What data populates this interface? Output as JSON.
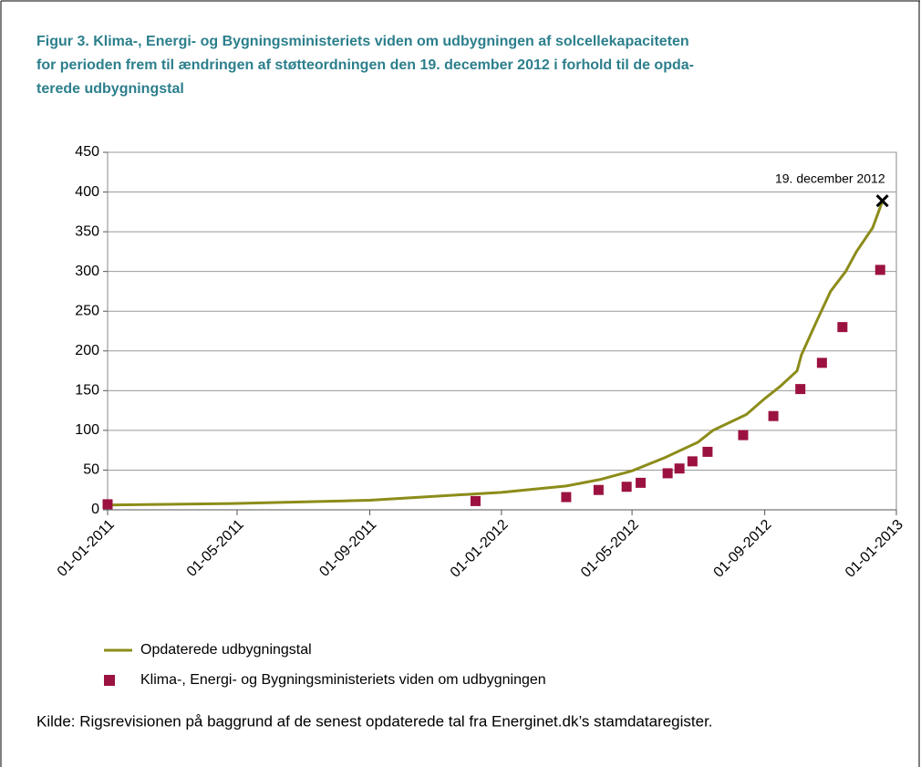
{
  "chart_data": {
    "type": "line",
    "title": [
      "Figur 3. Klima-, Energi- og Bygningsministeriets viden om udbygningen af solcellekapaciteten",
      "for perioden frem til ændringen af støtteordningen den 19. december 2012 i forhold til de opda-",
      "terede udbygningstal"
    ],
    "source": "Kilde:  Rigsrevisionen på baggrund af de senest opdaterede tal fra Energinet.dk’s stamdataregister.",
    "xlim": [
      "2011-01-01",
      "2013-01-01"
    ],
    "xticks": [
      {
        "value": "2011-01-01",
        "label": "01-01-2011"
      },
      {
        "value": "2011-05-01",
        "label": "01-05-2011"
      },
      {
        "value": "2011-09-01",
        "label": "01-09-2011"
      },
      {
        "value": "2012-01-01",
        "label": "01-01-2012"
      },
      {
        "value": "2012-05-01",
        "label": "01-05-2012"
      },
      {
        "value": "2012-09-01",
        "label": "01-09-2012"
      },
      {
        "value": "2013-01-01",
        "label": "01-01-2013"
      }
    ],
    "ylim": [
      0,
      450
    ],
    "yticks": [
      0,
      50,
      100,
      150,
      200,
      250,
      300,
      350,
      400,
      450
    ],
    "grid": true,
    "series": [
      {
        "name": "Opdaterede udbygningstal",
        "color": "#8c8c1a",
        "kind": "line",
        "x": [
          "2011-01-01",
          "2011-05-01",
          "2011-09-01",
          "2012-01-01",
          "2012-03-01",
          "2012-04-01",
          "2012-05-01",
          "2012-06-01",
          "2012-07-01",
          "2012-07-15",
          "2012-08-15",
          "2012-09-01",
          "2012-09-15",
          "2012-10-01",
          "2012-10-05",
          "2012-10-20",
          "2012-11-01",
          "2012-11-15",
          "2012-11-25",
          "2012-12-10",
          "2012-12-19"
        ],
        "values": [
          6,
          8,
          12,
          22,
          30,
          38,
          49,
          66,
          85,
          100,
          120,
          140,
          155,
          175,
          195,
          240,
          275,
          300,
          325,
          355,
          388
        ]
      },
      {
        "name": "Klima-, Energi- og Bygningsministeriets viden om udbygningen",
        "color": "#9b1240",
        "kind": "scatter",
        "x": [
          "2011-01-01",
          "2011-12-08",
          "2012-03-01",
          "2012-03-31",
          "2012-04-26",
          "2012-05-09",
          "2012-06-03",
          "2012-06-14",
          "2012-06-26",
          "2012-07-10",
          "2012-08-12",
          "2012-09-09",
          "2012-10-04",
          "2012-10-24",
          "2012-11-12",
          "2012-12-17"
        ],
        "values": [
          7,
          11,
          16,
          25,
          29,
          34,
          46,
          52,
          61,
          73,
          94,
          118,
          152,
          185,
          230,
          302
        ]
      }
    ],
    "annotation": {
      "text": "19. december  2012",
      "x": "2012-12-19",
      "value": 389
    }
  }
}
